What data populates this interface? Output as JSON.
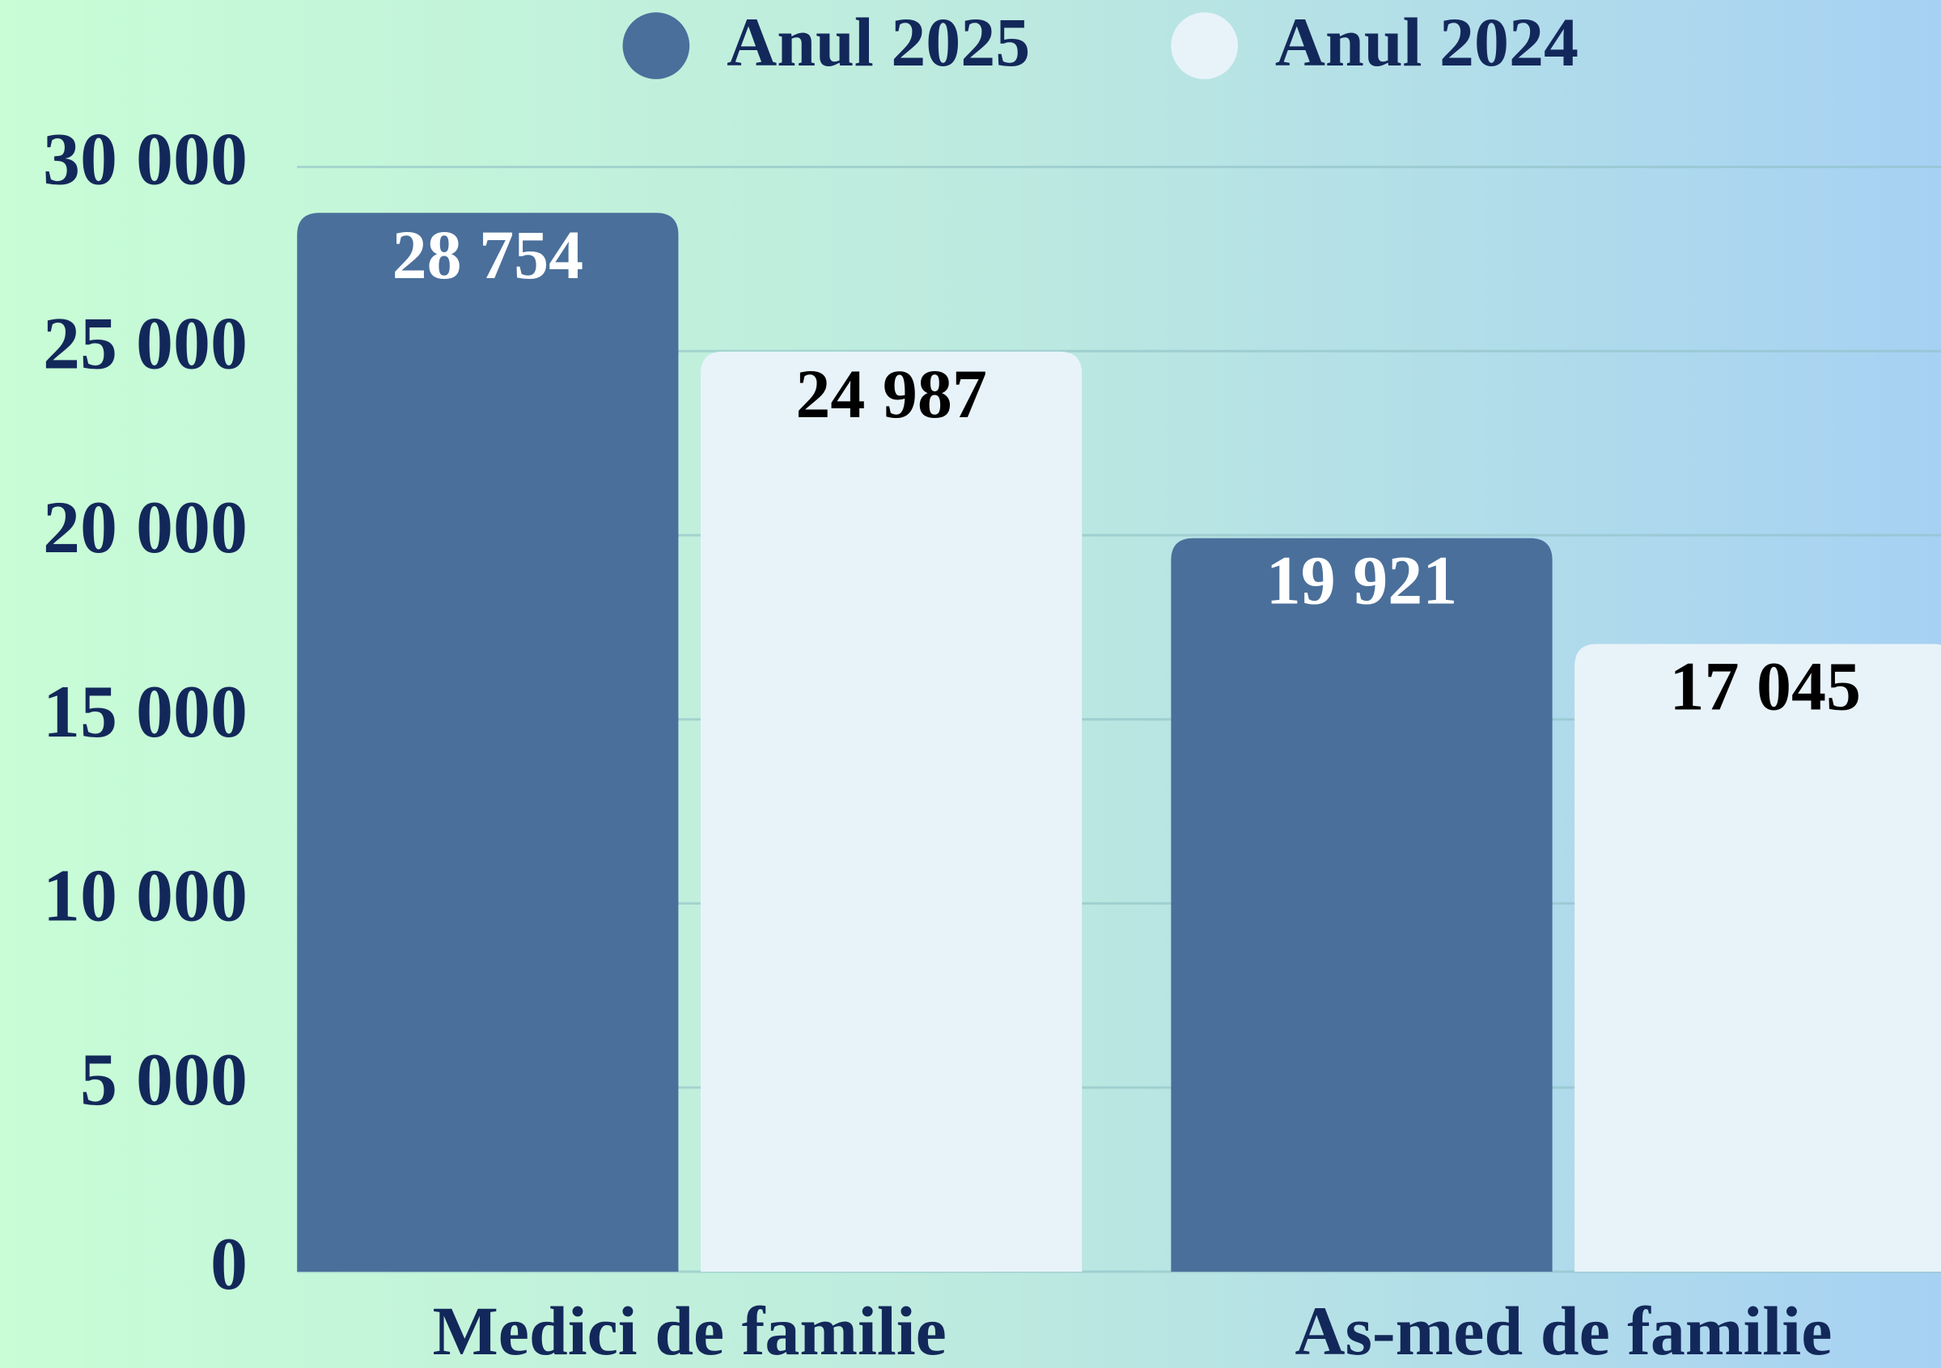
{
  "chart_data": {
    "type": "bar",
    "categories": [
      "Medici de familie",
      "As-med de familie"
    ],
    "series": [
      {
        "name": "Anul 2025",
        "color": "#4a6f9b",
        "label_color": "#ffffff",
        "values": [
          28754,
          19921
        ],
        "value_labels": [
          "28 754",
          "19 921"
        ]
      },
      {
        "name": "Anul 2024",
        "color": "#e8f3f9",
        "label_color": "#000000",
        "values": [
          24987,
          17045
        ],
        "value_labels": [
          "24 987",
          "17 045"
        ]
      }
    ],
    "ylim": [
      0,
      30000
    ],
    "yticks": [
      0,
      {
        "value": 5000,
        "label": "5 000"
      },
      {
        "value": 10000,
        "label": "10 000"
      },
      {
        "value": 15000,
        "label": "15 000"
      },
      {
        "value": 20000,
        "label": "20 000"
      },
      {
        "value": 25000,
        "label": "25 000"
      },
      {
        "value": 30000,
        "label": "30 000"
      }
    ],
    "grid": true,
    "legend": "top"
  }
}
